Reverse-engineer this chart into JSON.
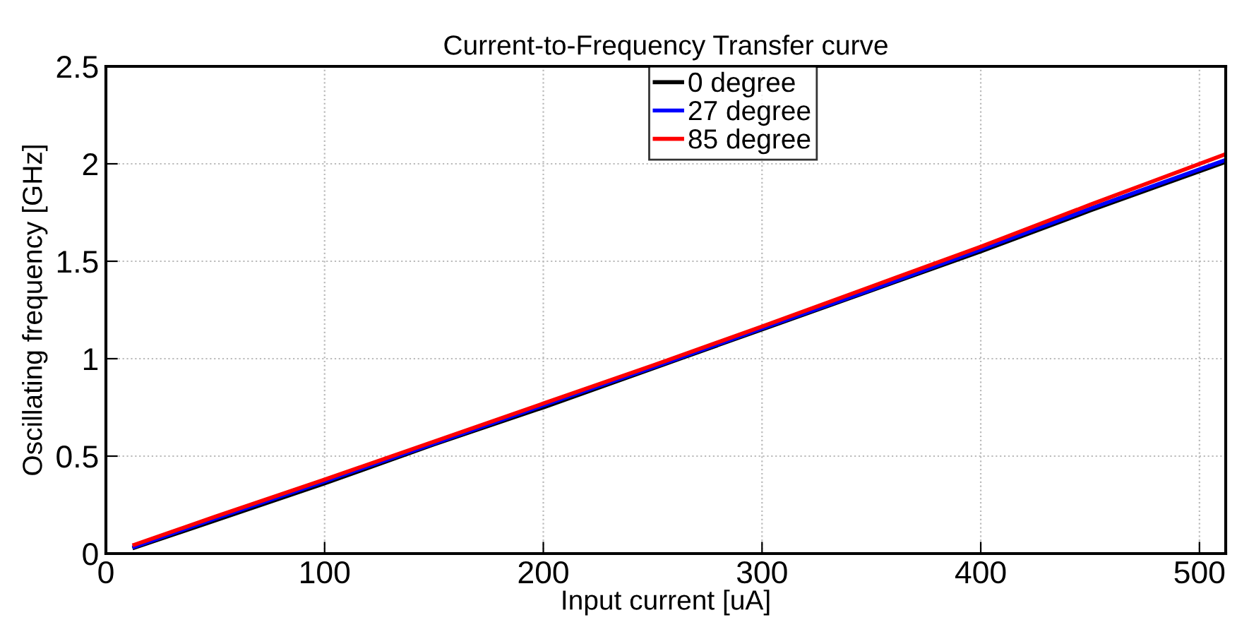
{
  "chart_data": {
    "type": "line",
    "title": "Current-to-Frequency Transfer curve",
    "xlabel": "Input current [uA]",
    "ylabel": "Oscillating frequency [GHz]",
    "x": [
      13,
      50,
      100,
      150,
      200,
      250,
      300,
      350,
      400,
      450,
      512
    ],
    "series": [
      {
        "name": "0 degree",
        "color": "#000000",
        "values": [
          0.03,
          0.17,
          0.36,
          0.56,
          0.75,
          0.95,
          1.15,
          1.35,
          1.55,
          1.76,
          2.01
        ]
      },
      {
        "name": "27 degree",
        "color": "#0000ff",
        "values": [
          0.035,
          0.18,
          0.37,
          0.565,
          0.76,
          0.955,
          1.155,
          1.355,
          1.56,
          1.77,
          2.02
        ]
      },
      {
        "name": "85 degree",
        "color": "#ff0000",
        "values": [
          0.045,
          0.19,
          0.38,
          0.575,
          0.77,
          0.965,
          1.165,
          1.37,
          1.575,
          1.79,
          2.05
        ]
      }
    ],
    "xlim": [
      0,
      512
    ],
    "ylim": [
      0,
      2.5
    ],
    "xticks": [
      0,
      100,
      200,
      300,
      400,
      500
    ],
    "yticks": [
      0,
      0.5,
      1,
      1.5,
      2,
      2.5
    ],
    "grid": true,
    "legend": "top",
    "line_style": "solid",
    "marker": "none"
  }
}
